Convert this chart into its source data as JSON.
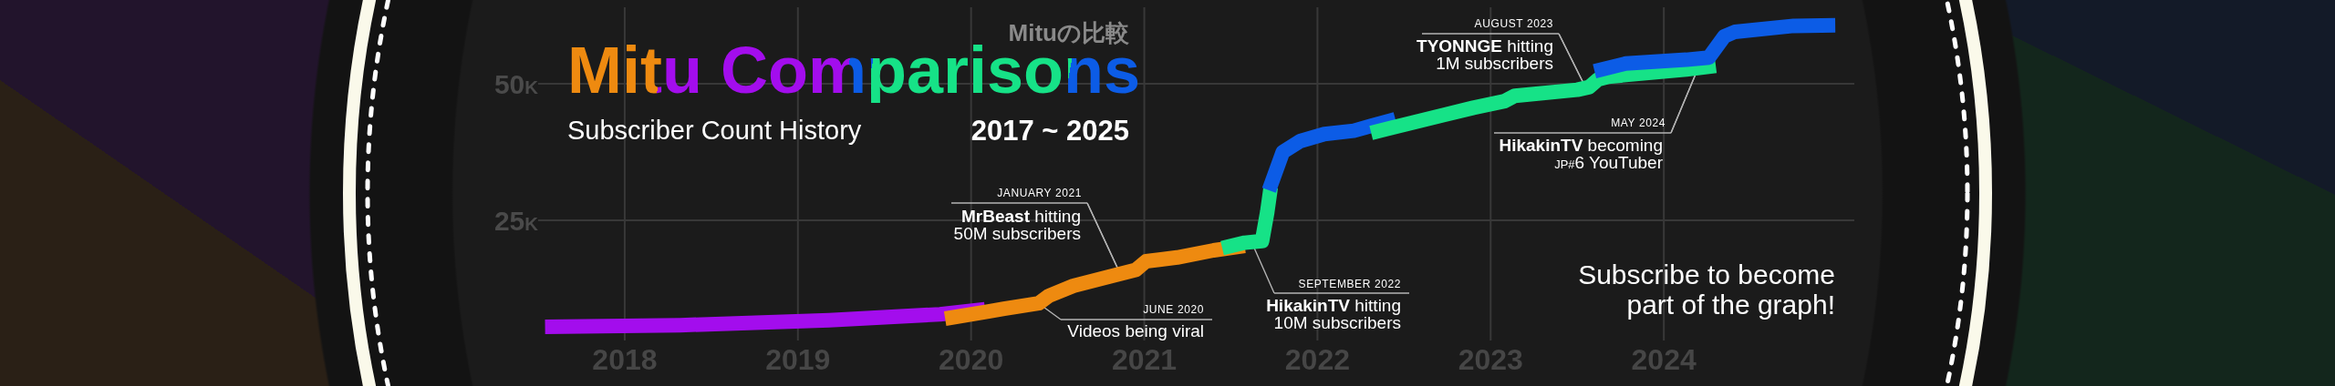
{
  "chart_data": {
    "type": "line",
    "title": "Mitu Comparisons",
    "subtitle": "Subscriber Count History",
    "xlim": [
      2017.5,
      2025.1
    ],
    "xticks": [
      2018,
      2019,
      2020,
      2021,
      2022,
      2023,
      2024
    ],
    "ylim": [
      3000,
      64000
    ],
    "yticks": [
      {
        "value": 25000,
        "label": "25K"
      },
      {
        "value": 50000,
        "label": "50K"
      }
    ],
    "grid": true,
    "series": [
      {
        "color": "#a30ded",
        "x": [
          2017.54,
          2018.32,
          2019.18,
          2019.82,
          2020.08
        ],
        "values": [
          5500,
          5800,
          6700,
          7800,
          8700
        ]
      },
      {
        "color": "#ee8a10",
        "x": [
          2019.85,
          2020.1,
          2020.19,
          2020.39,
          2020.45,
          2020.59,
          2020.8,
          2020.95,
          2021.01,
          2021.19,
          2021.4,
          2021.58
        ],
        "values": [
          7000,
          8300,
          8800,
          9800,
          11200,
          13000,
          14700,
          15900,
          17500,
          18200,
          19500,
          20300
        ]
      },
      {
        "color": "#16e287",
        "x": [
          2021.45,
          2021.58,
          2021.68,
          2021.71,
          2021.73
        ],
        "values": [
          19900,
          20900,
          21200,
          26500,
          31000
        ]
      },
      {
        "color": "#0c5ce6",
        "x": [
          2021.72,
          2021.8,
          2021.9,
          2022.04,
          2022.21,
          2022.31,
          2022.45
        ],
        "values": [
          30500,
          37500,
          39500,
          40800,
          41400,
          42300,
          43500
        ]
      },
      {
        "color": "#16e287",
        "x": [
          2022.31,
          2022.5,
          2022.73,
          2022.9,
          2023.08,
          2023.14,
          2023.5,
          2023.57,
          2023.62,
          2023.68,
          2023.78,
          2024.13,
          2024.3
        ],
        "values": [
          41000,
          42500,
          44300,
          45600,
          46800,
          47800,
          48900,
          49400,
          50800,
          51300,
          51600,
          52600,
          53300
        ]
      },
      {
        "color": "#0c5ce6",
        "x": [
          2023.6,
          2023.78,
          2024.13,
          2024.26,
          2024.35,
          2024.41,
          2024.75,
          2024.99
        ],
        "values": [
          52300,
          53700,
          54400,
          54800,
          58700,
          59500,
          60600,
          60700
        ]
      }
    ],
    "annotations": [
      "Mituの比較",
      "2017 ~ 2025",
      "JUNE 2020",
      {
        "text": "Videos being viral",
        "x": 2020.39,
        "y": 9800
      },
      {
        "text": "JANUARY 2021",
        "x": 2020.86,
        "y": 15300
      },
      {
        "text": "**MrBeast** hitting 50M subscribers",
        "x": 2020.86,
        "y": 15300
      },
      "SEPTEMBER 2022",
      {
        "text": "**HikakinTV** hitting 10M subscribers",
        "x": 2021.62,
        "y": 21000
      },
      {
        "text": "AUGUST 2023",
        "x": 2023.55,
        "y": 49200
      },
      {
        "text": "**TYONNGE** hitting 1M subscribers",
        "x": 2023.55,
        "y": 49200
      },
      {
        "text": "MAY 2024",
        "x": 2024.2,
        "y": 53000
      },
      {
        "text": "**HikakinTV** becoming JP#6 YouTuber",
        "x": 2024.2,
        "y": 53000
      },
      "Subscribe to become part of the graph!"
    ]
  }
}
